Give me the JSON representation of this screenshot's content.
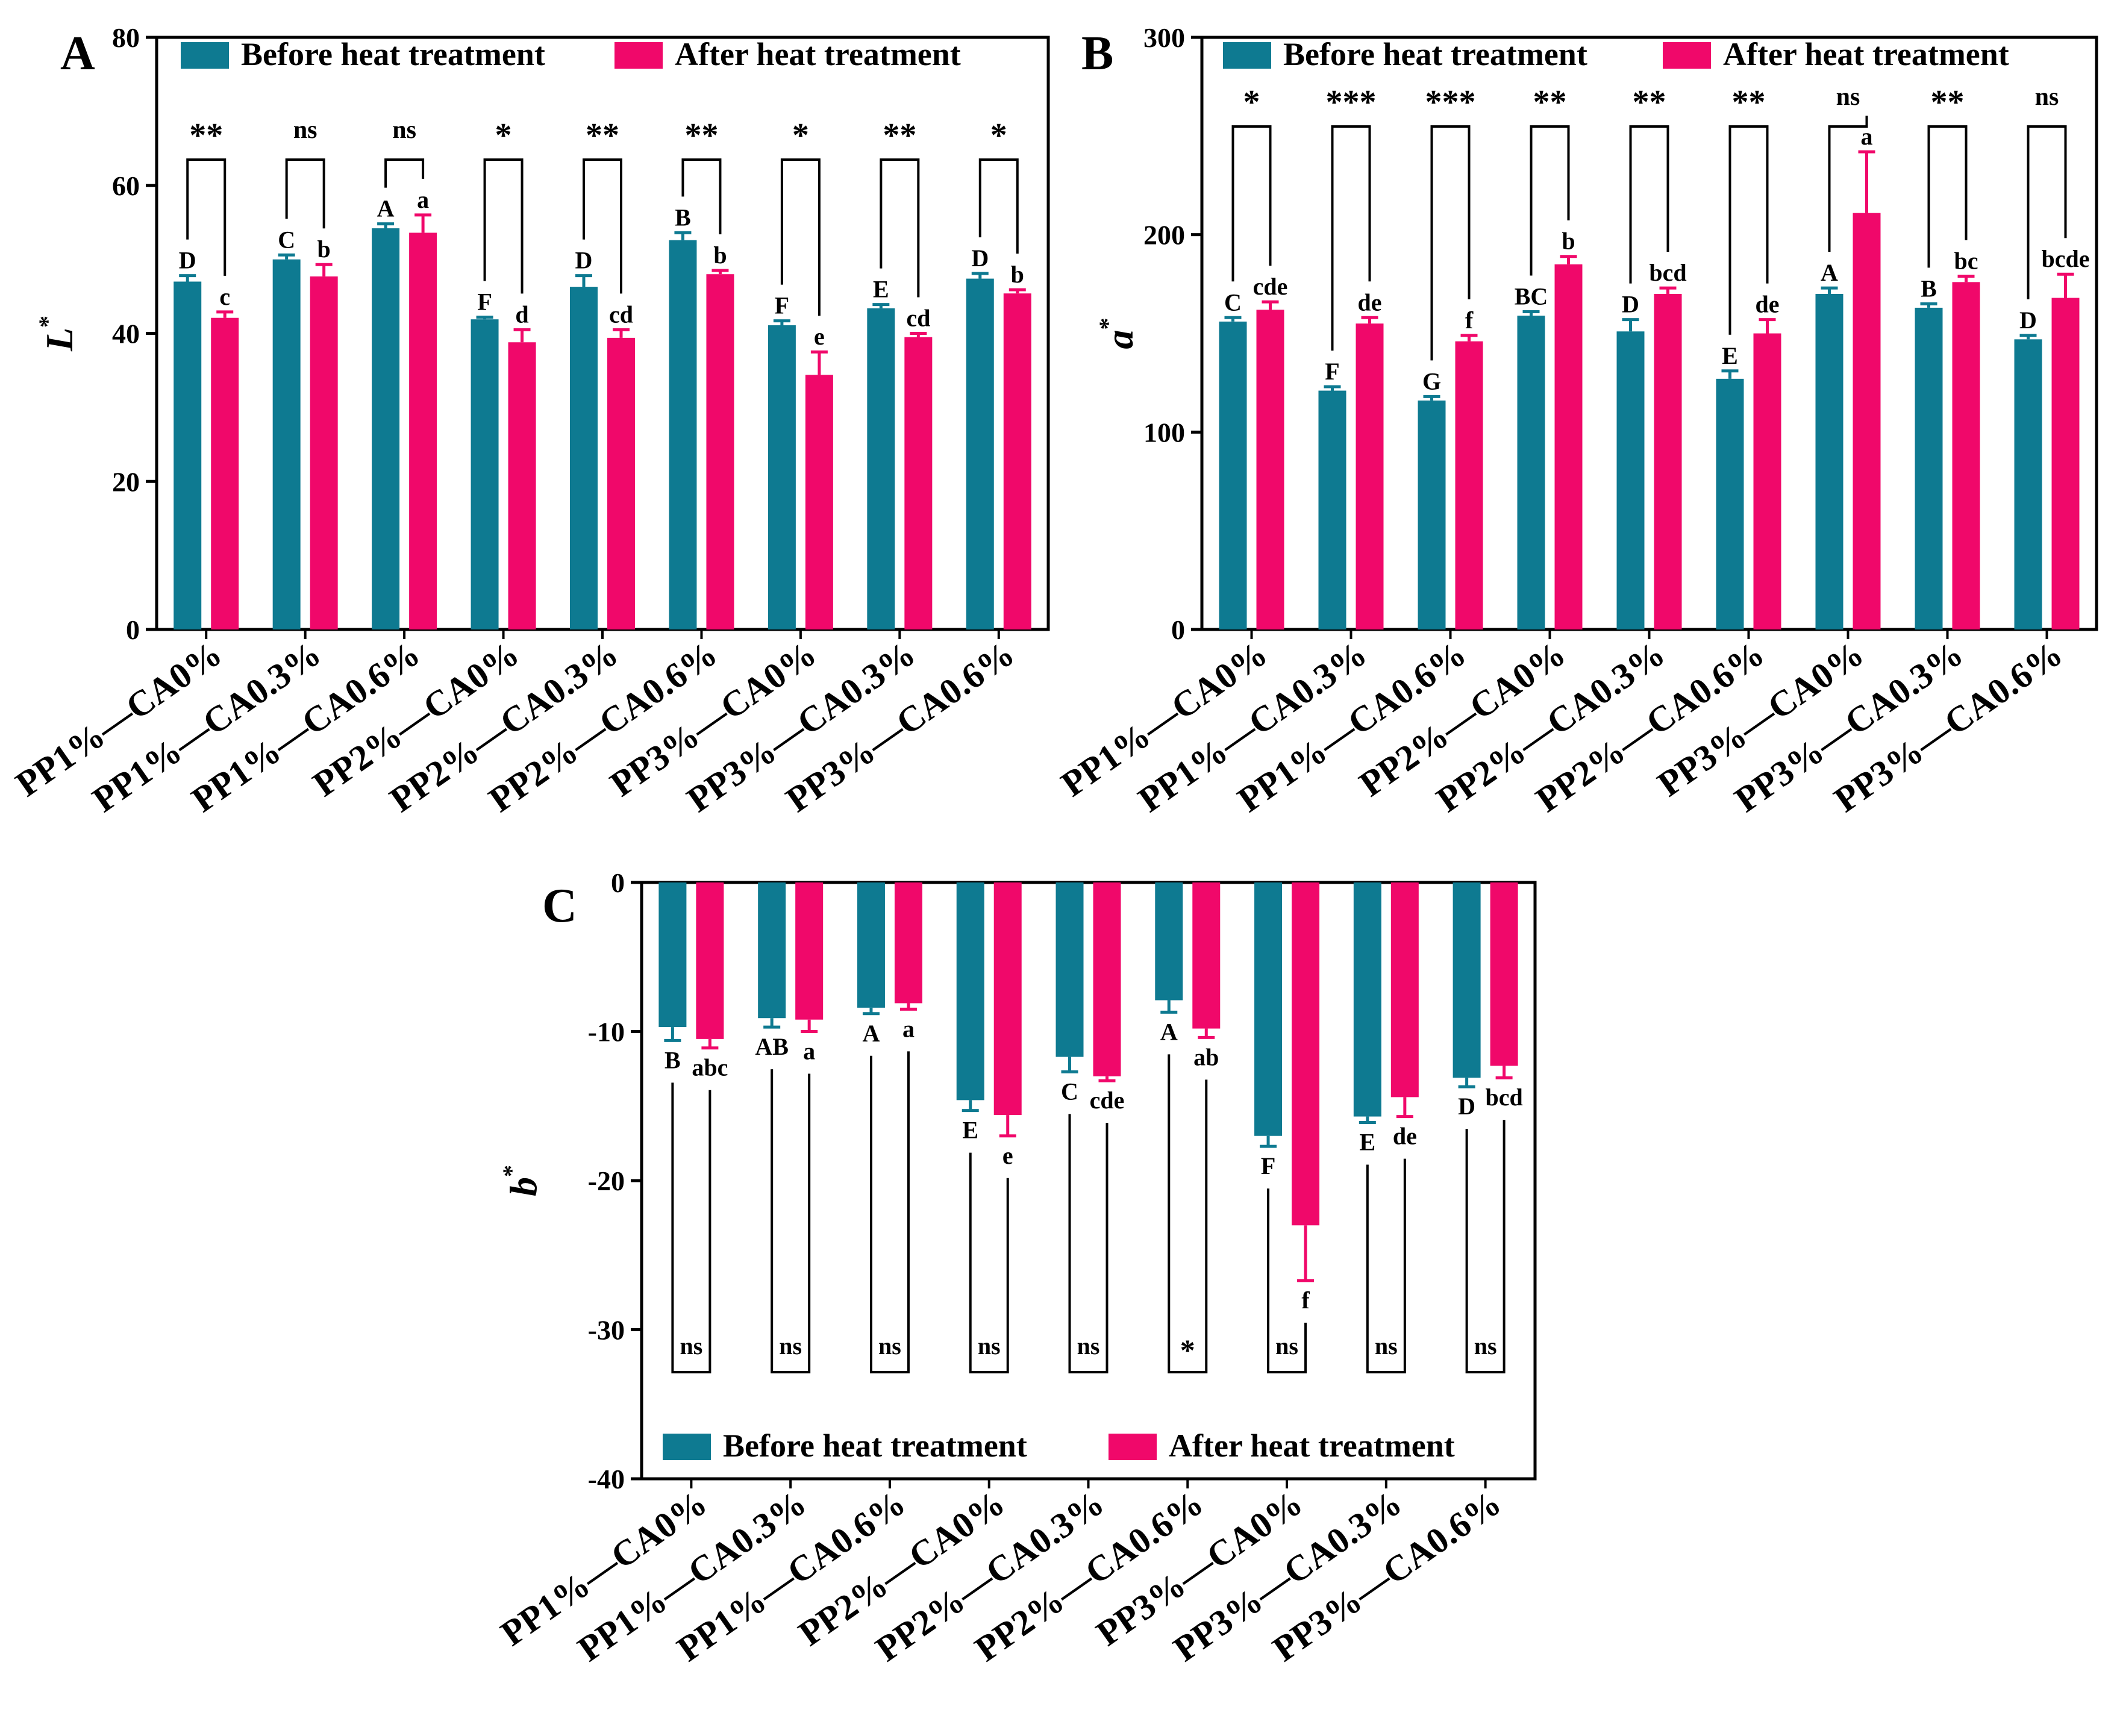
{
  "colors": {
    "before": "#0e7a91",
    "after": "#f0086a",
    "axis": "#000000"
  },
  "legend": {
    "before": "Before heat treatment",
    "after": "After heat treatment"
  },
  "chart_data": [
    {
      "type": "bar",
      "panel": "A",
      "ylabel": "L",
      "ylabel_sup": "*",
      "ylim": [
        0,
        80
      ],
      "yticks": [
        0,
        20,
        40,
        60,
        80
      ],
      "legend_position": "top",
      "categories": [
        "PP1%—CA0%",
        "PP1%—CA0.3%",
        "PP1%—CA0.6%",
        "PP2%—CA0%",
        "PP2%—CA0.3%",
        "PP2%—CA0.6%",
        "PP3%—CA0%",
        "PP3%—CA0.3%",
        "PP3%—CA0.6%"
      ],
      "series": [
        {
          "name": "Before heat treatment",
          "values": [
            47.0,
            50.0,
            54.2,
            41.9,
            46.3,
            52.6,
            41.1,
            43.4,
            47.4
          ],
          "errors": [
            0.8,
            0.6,
            0.6,
            0.3,
            1.5,
            1.0,
            0.6,
            0.5,
            0.7
          ],
          "letters": [
            "D",
            "C",
            "A",
            "F",
            "D",
            "B",
            "F",
            "E",
            "D"
          ]
        },
        {
          "name": "After heat treatment",
          "values": [
            42.1,
            47.7,
            53.6,
            38.8,
            39.4,
            48.0,
            34.4,
            39.5,
            45.4
          ],
          "errors": [
            0.8,
            1.6,
            2.4,
            1.7,
            1.1,
            0.5,
            3.1,
            0.5,
            0.5
          ],
          "letters": [
            "c",
            "b",
            "a",
            "d",
            "cd",
            "b",
            "e",
            "cd",
            "b"
          ]
        }
      ],
      "significance": [
        "**",
        "ns",
        "ns",
        "*",
        "**",
        "**",
        "*",
        "**",
        "*"
      ]
    },
    {
      "type": "bar",
      "panel": "B",
      "ylabel": "a",
      "ylabel_sup": "*",
      "ylim": [
        0,
        300
      ],
      "yticks": [
        0,
        100,
        200,
        300
      ],
      "legend_position": "top",
      "categories": [
        "PP1%—CA0%",
        "PP1%—CA0.3%",
        "PP1%—CA0.6%",
        "PP2%—CA0%",
        "PP2%—CA0.3%",
        "PP2%—CA0.6%",
        "PP3%—CA0%",
        "PP3%—CA0.3%",
        "PP3%—CA0.6%"
      ],
      "series": [
        {
          "name": "Before heat treatment",
          "values": [
            156,
            121,
            116,
            159,
            151,
            127,
            170,
            163,
            147
          ],
          "errors": [
            2,
            2,
            2,
            2,
            6,
            4,
            3,
            2,
            2
          ],
          "letters": [
            "C",
            "F",
            "G",
            "BC",
            "D",
            "E",
            "A",
            "B",
            "D"
          ]
        },
        {
          "name": "After heat treatment",
          "values": [
            162,
            155,
            146,
            185,
            170,
            150,
            211,
            176,
            168
          ],
          "errors": [
            4,
            3,
            3,
            4,
            3,
            7,
            31,
            3,
            12
          ],
          "letters": [
            "cde",
            "de",
            "f",
            "b",
            "bcd",
            "de",
            "a",
            "bc",
            "bcde"
          ]
        }
      ],
      "significance": [
        "*",
        "***",
        "***",
        "**",
        "**",
        "**",
        "ns",
        "**",
        "ns"
      ]
    },
    {
      "type": "bar",
      "panel": "C",
      "ylabel": "b",
      "ylabel_sup": "*",
      "ylim": [
        -40,
        0
      ],
      "yticks": [
        0,
        -10,
        -20,
        -30,
        -40
      ],
      "legend_position": "bottom",
      "categories": [
        "PP1%—CA0%",
        "PP1%—CA0.3%",
        "PP1%—CA0.6%",
        "PP2%—CA0%",
        "PP2%—CA0.3%",
        "PP2%—CA0.6%",
        "PP3%—CA0%",
        "PP3%—CA0.3%",
        "PP3%—CA0.6%"
      ],
      "series": [
        {
          "name": "Before heat treatment",
          "values": [
            -9.7,
            -9.1,
            -8.4,
            -14.6,
            -11.7,
            -7.9,
            -17.0,
            -15.7,
            -13.1
          ],
          "errors": [
            0.9,
            0.6,
            0.4,
            0.7,
            1.0,
            0.8,
            0.7,
            0.4,
            0.6
          ],
          "letters": [
            "B",
            "AB",
            "A",
            "E",
            "C",
            "A",
            "F",
            "E",
            "D"
          ]
        },
        {
          "name": "After heat treatment",
          "values": [
            -10.5,
            -9.2,
            -8.1,
            -15.6,
            -13.0,
            -9.8,
            -23.0,
            -14.4,
            -12.3
          ],
          "errors": [
            0.6,
            0.8,
            0.4,
            1.4,
            0.3,
            0.6,
            3.7,
            1.3,
            0.8
          ],
          "letters": [
            "abc",
            "a",
            "a",
            "e",
            "cde",
            "ab",
            "f",
            "de",
            "bcd"
          ]
        }
      ],
      "significance": [
        "ns",
        "ns",
        "ns",
        "ns",
        "ns",
        "*",
        "ns",
        "ns",
        "ns"
      ]
    }
  ]
}
